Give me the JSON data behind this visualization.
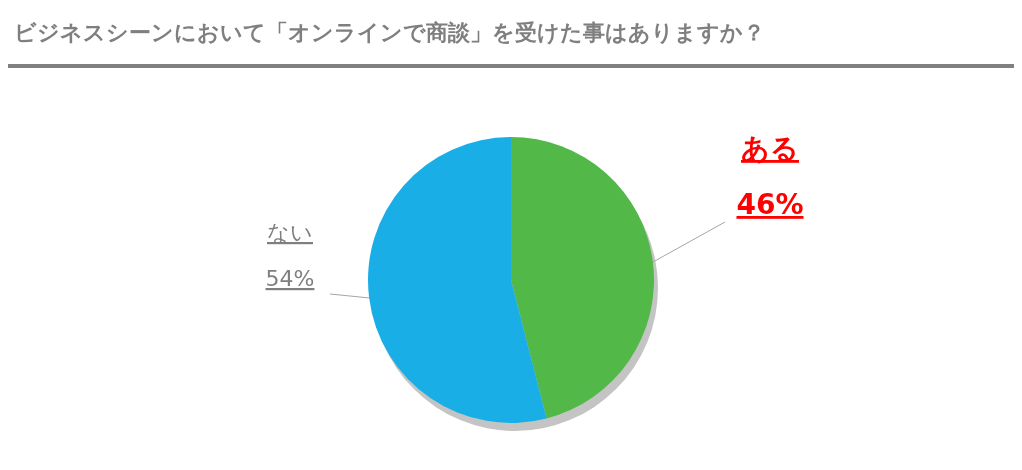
{
  "chart_data": {
    "type": "pie",
    "title": "ビジネスシーンにおいて「オンラインで商談」を受けた事はありますか？",
    "categories": [
      "ある",
      "ない"
    ],
    "values": [
      46,
      54
    ],
    "colors": [
      "#52b848",
      "#1aaee6"
    ],
    "value_labels": [
      "46%",
      "54%"
    ]
  }
}
